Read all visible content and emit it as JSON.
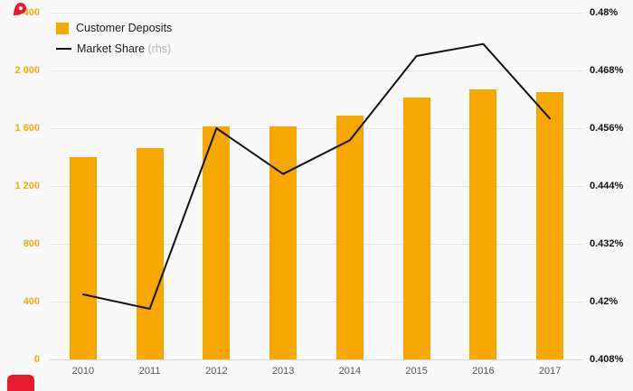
{
  "chart_data": {
    "type": "combo",
    "categories": [
      "2010",
      "2011",
      "2012",
      "2013",
      "2014",
      "2015",
      "2016",
      "2017"
    ],
    "series": [
      {
        "name": "Customer Deposits",
        "type": "bar",
        "axis": "left",
        "color": "#F6A800",
        "values": [
          1400,
          1460,
          1610,
          1610,
          1690,
          1810,
          1870,
          1850
        ]
      },
      {
        "name": "Market Share (rhs)",
        "type": "line",
        "axis": "right",
        "color": "#111111",
        "values": [
          0.4215,
          0.4185,
          0.456,
          0.4465,
          0.4535,
          0.471,
          0.4735,
          0.458
        ]
      }
    ],
    "left_axis": {
      "min": 0,
      "max": 2400,
      "step": 400,
      "labels": [
        "0",
        "400",
        "800",
        "1 200",
        "1 600",
        "2 000",
        "2 400"
      ],
      "color": "#F6A800"
    },
    "right_axis": {
      "min": 0.408,
      "max": 0.48,
      "step": 0.012,
      "labels": [
        "0.408%",
        "0.42%",
        "0.432%",
        "0.444%",
        "0.456%",
        "0.468%",
        "0.48%"
      ],
      "color": "#111111"
    },
    "grid": true,
    "legend_position": "top-left",
    "title": "",
    "xlabel": "",
    "ylabel": ""
  },
  "legend": {
    "bar_label": "Customer Deposits",
    "line_label": "Market Share",
    "line_label_suffix": "(rhs)"
  },
  "colors": {
    "background": "#f9f9f9",
    "bar": "#F6A800",
    "line": "#111111",
    "gridline": "#e4e4e4",
    "marker_red": "#e8192c"
  }
}
